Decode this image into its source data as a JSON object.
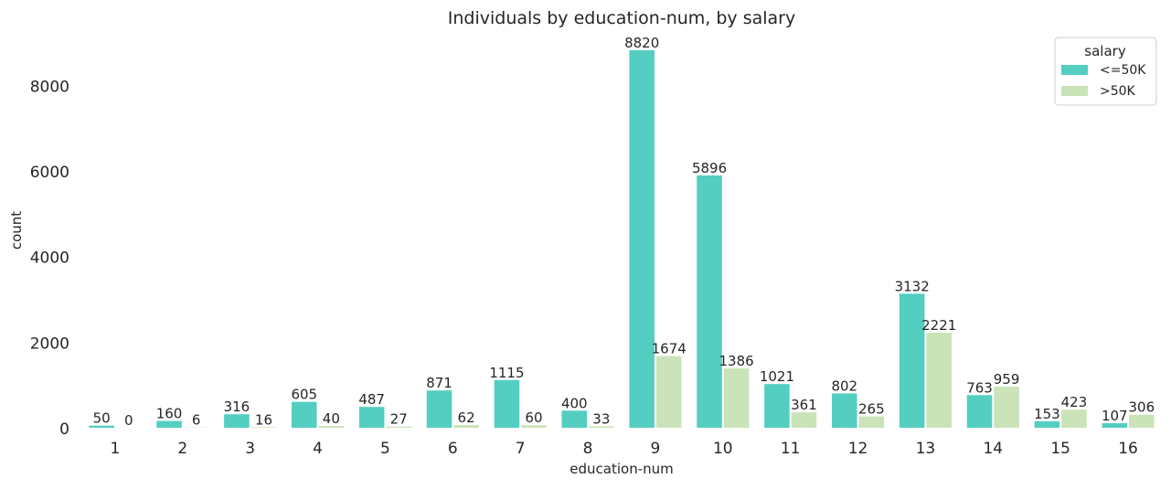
{
  "chart_data": {
    "type": "bar",
    "title": "Individuals by education-num, by salary",
    "xlabel": "education-num",
    "ylabel": "count",
    "categories": [
      "1",
      "2",
      "3",
      "4",
      "5",
      "6",
      "7",
      "8",
      "9",
      "10",
      "11",
      "12",
      "13",
      "14",
      "15",
      "16"
    ],
    "series": [
      {
        "name": "<=50K",
        "color": "#53CEC1",
        "values": [
          50,
          160,
          316,
          605,
          487,
          871,
          1115,
          400,
          8820,
          5896,
          1021,
          802,
          3132,
          763,
          153,
          107
        ]
      },
      {
        "name": ">50K",
        "color": "#CAE3B8",
        "values": [
          0,
          6,
          16,
          40,
          27,
          62,
          60,
          33,
          1674,
          1386,
          361,
          265,
          2221,
          959,
          423,
          306
        ]
      }
    ],
    "yticks": [
      0,
      2000,
      4000,
      6000,
      8000
    ],
    "ylim": [
      0,
      8820
    ],
    "grid": false,
    "legend": {
      "title": "salary",
      "placement": "top-right"
    }
  }
}
